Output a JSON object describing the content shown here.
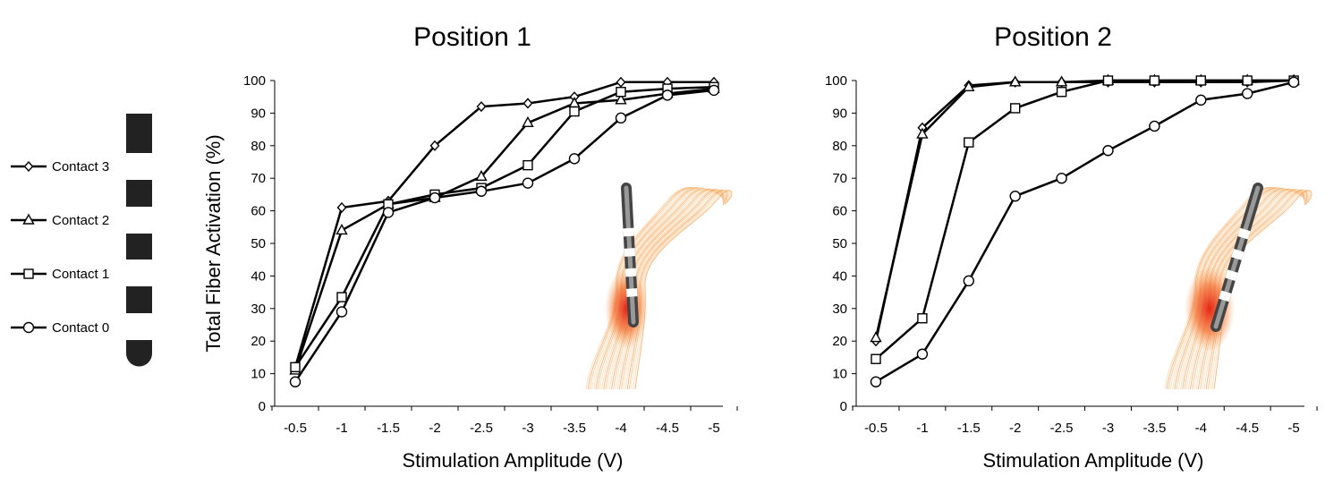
{
  "legend": {
    "items": [
      {
        "label": "Contact 3",
        "marker": "diamond"
      },
      {
        "label": "Contact 2",
        "marker": "triangle"
      },
      {
        "label": "Contact 1",
        "marker": "square"
      },
      {
        "label": "Contact 0",
        "marker": "circle"
      }
    ]
  },
  "colors": {
    "line": "#000000",
    "marker_fill": "#ffffff",
    "lead_dark": "#222222",
    "lead_light": "#ffffff",
    "fiber_light": "#fbd3a6",
    "fiber_mid": "#f5a35a",
    "fiber_hot": "#e51b0e"
  },
  "chart_data": [
    {
      "type": "line",
      "title": "Position 1",
      "xlabel": "Stimulation Amplitude (V)",
      "ylabel": "Total Fiber Activation (%)",
      "categories": [
        "-0.5",
        "-1",
        "-1.5",
        "-2",
        "-2.5",
        "-3",
        "-3.5",
        "-4",
        "-4.5",
        "-5"
      ],
      "ylim": [
        0,
        100
      ],
      "yticks": [
        "0",
        "10",
        "20",
        "30",
        "40",
        "50",
        "60",
        "70",
        "80",
        "90",
        "100"
      ],
      "grid": false,
      "series": [
        {
          "name": "Contact 3",
          "marker": "diamond",
          "values": [
            12,
            61,
            63,
            80,
            92,
            93,
            95,
            99.5,
            99.5,
            99.5
          ]
        },
        {
          "name": "Contact 2",
          "marker": "triangle",
          "values": [
            11,
            54,
            62,
            64,
            70.5,
            87,
            93,
            94,
            96,
            97.5
          ]
        },
        {
          "name": "Contact 1",
          "marker": "square",
          "values": [
            12,
            33.5,
            62,
            65,
            67,
            74,
            90.5,
            96.5,
            97.5,
            98
          ]
        },
        {
          "name": "Contact 0",
          "marker": "circle",
          "values": [
            7.5,
            29,
            59.5,
            64,
            66,
            68.5,
            76,
            88.5,
            95.5,
            97
          ]
        }
      ]
    },
    {
      "type": "line",
      "title": "Position 2",
      "xlabel": "Stimulation Amplitude (V)",
      "ylabel": "",
      "categories": [
        "-0.5",
        "-1",
        "-1.5",
        "-2",
        "-2.5",
        "-3",
        "-3.5",
        "-4",
        "-4.5",
        "-5"
      ],
      "ylim": [
        0,
        100
      ],
      "yticks": [
        "0",
        "10",
        "20",
        "30",
        "40",
        "50",
        "60",
        "70",
        "80",
        "90",
        "100"
      ],
      "grid": false,
      "series": [
        {
          "name": "Contact 3",
          "marker": "diamond",
          "values": [
            20,
            85.5,
            98.5,
            99.5,
            99.5,
            99.5,
            99.5,
            99.5,
            99.5,
            100
          ]
        },
        {
          "name": "Contact 2",
          "marker": "triangle",
          "values": [
            21,
            83.5,
            98,
            99.5,
            99.5,
            100,
            100,
            100,
            100,
            100
          ]
        },
        {
          "name": "Contact 1",
          "marker": "square",
          "values": [
            14.5,
            27,
            81,
            91.5,
            96.5,
            100,
            100,
            100,
            100,
            100
          ]
        },
        {
          "name": "Contact 0",
          "marker": "circle",
          "values": [
            7.5,
            16,
            38.5,
            64.5,
            70,
            78.5,
            86,
            94,
            96,
            99.5
          ]
        }
      ]
    }
  ]
}
